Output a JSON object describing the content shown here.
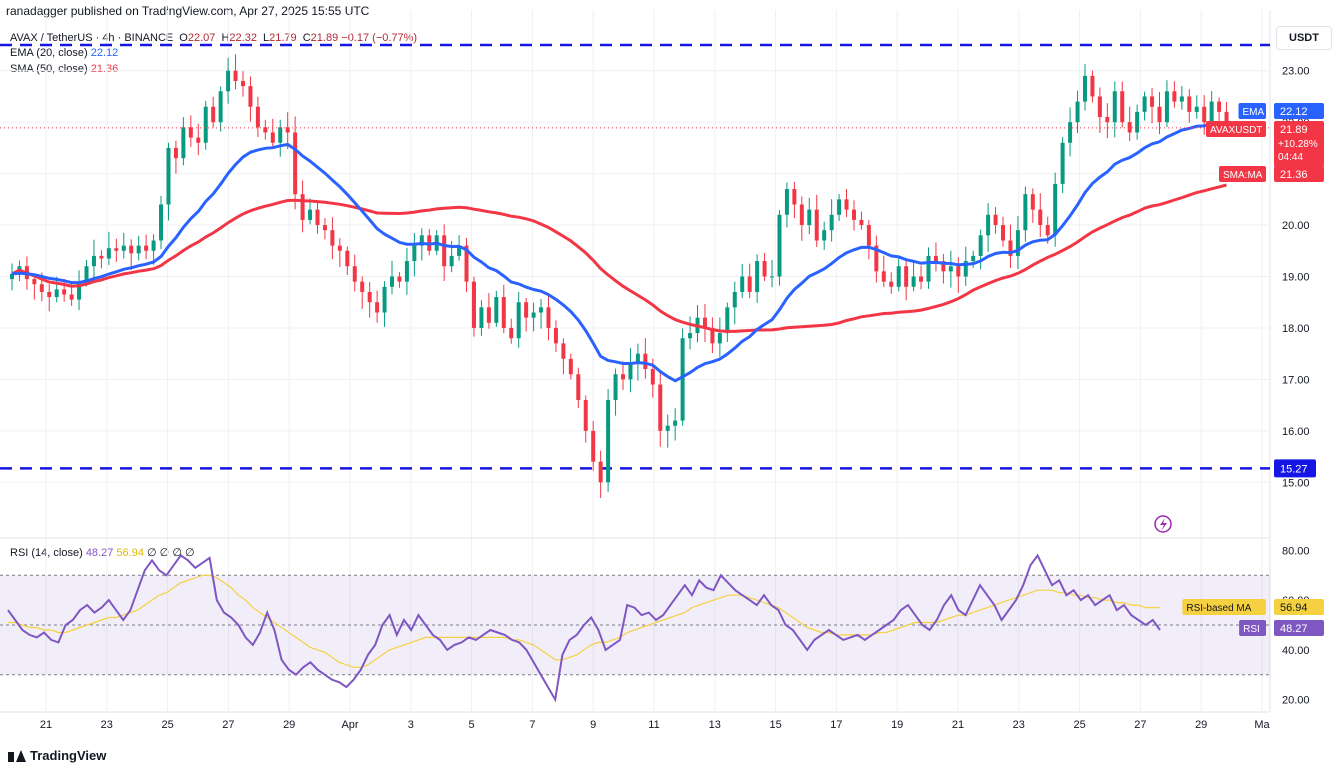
{
  "publisher": "ranadagger published on TradingView.com, Apr 27, 2025 15:55 UTC",
  "brand": "TradingView",
  "currency": "USDT",
  "legend": {
    "symbol": "AVAX / TetherUS · 4h · BINANCE",
    "o_label": "O",
    "o": "22.07",
    "h_label": "H",
    "h": "22.32",
    "l_label": "L",
    "l": "21.79",
    "c_label": "C",
    "c": "21.89",
    "change": "−0.17 (−0.77%)",
    "ema_label": "EMA (20, close)",
    "ema": "22.12",
    "sma_label": "SMA (50, close)",
    "sma": "21.36",
    "rsi_label": "RSI (14, close)",
    "rsi": "48.27",
    "rsi_ma": "56.94",
    "rsi_extra": [
      "∅",
      "∅",
      "∅",
      "∅"
    ]
  },
  "colors": {
    "up": "#089981",
    "down": "#f23645",
    "ema": "#2962ff",
    "sma": "#f23645",
    "rsi": "#7e57c2",
    "rsi_ma": "#f5d142",
    "dash": "#1515e6",
    "grid": "#eef0f3"
  },
  "chart_data": [
    {
      "type": "candlestick",
      "symbol": "AVAXUSDT",
      "ylim": [
        14.5,
        23.5
      ],
      "yticks": [
        "15.00",
        "16.00",
        "17.00",
        "18.00",
        "19.00",
        "20.00",
        "21.00",
        "22.00",
        "23.00"
      ],
      "xticks": [
        "21",
        "23",
        "25",
        "27",
        "29",
        "Apr",
        "3",
        "5",
        "7",
        "9",
        "11",
        "13",
        "15",
        "17",
        "19",
        "21",
        "23",
        "25",
        "27",
        "29",
        "Ma"
      ],
      "horizontal_levels": [
        {
          "value": 23.5,
          "label": ""
        },
        {
          "value": 15.27,
          "label": "15.27"
        }
      ],
      "price_tags": [
        {
          "name": "EMA",
          "value": "22.12",
          "color": "#2962ff"
        },
        {
          "name": "AVAXUSDT",
          "value": "21.89",
          "extra": [
            "+10.28%",
            "04:44"
          ],
          "color": "#f23645"
        },
        {
          "name": "SMA:MA",
          "value": "21.36",
          "color": "#f23645"
        }
      ],
      "close_series": [
        19.05,
        19.2,
        18.95,
        18.85,
        18.7,
        18.6,
        18.75,
        18.65,
        18.55,
        18.9,
        19.2,
        19.4,
        19.35,
        19.55,
        19.5,
        19.6,
        19.45,
        19.6,
        19.5,
        19.7,
        20.4,
        21.5,
        21.3,
        21.9,
        21.7,
        21.6,
        22.3,
        22.0,
        22.6,
        23.0,
        22.8,
        22.7,
        22.3,
        21.9,
        21.8,
        21.6,
        21.9,
        21.8,
        20.6,
        20.1,
        20.3,
        20.0,
        19.9,
        19.6,
        19.5,
        19.2,
        18.9,
        18.7,
        18.5,
        18.3,
        18.8,
        19.0,
        18.9,
        19.3,
        19.6,
        19.8,
        19.5,
        19.8,
        19.2,
        19.4,
        19.6,
        18.9,
        18.0,
        18.4,
        18.1,
        18.6,
        18.0,
        17.8,
        18.5,
        18.2,
        18.3,
        18.4,
        18.0,
        17.7,
        17.4,
        17.1,
        16.6,
        16.0,
        15.4,
        15.0,
        16.6,
        17.1,
        17.0,
        17.3,
        17.5,
        17.2,
        16.9,
        16.0,
        16.1,
        16.2,
        17.8,
        17.9,
        18.2,
        18.0,
        17.7,
        17.9,
        18.4,
        18.7,
        19.0,
        18.7,
        19.3,
        19.0,
        19.0,
        20.2,
        20.7,
        20.4,
        20.0,
        20.3,
        19.7,
        19.9,
        20.2,
        20.5,
        20.3,
        20.1,
        20.0,
        19.6,
        19.1,
        18.9,
        18.8,
        19.2,
        18.8,
        19.0,
        18.9,
        19.4,
        19.3,
        19.1,
        19.2,
        19.0,
        19.3,
        19.4,
        19.8,
        20.2,
        20.0,
        19.7,
        19.4,
        19.9,
        20.6,
        20.3,
        20.0,
        19.8,
        20.8,
        21.6,
        22.0,
        22.4,
        22.9,
        22.5,
        22.1,
        22.0,
        22.6,
        22.0,
        21.8,
        22.2,
        22.5,
        22.3,
        22.0,
        22.6,
        22.4,
        22.5,
        22.2,
        22.3,
        22.0,
        22.4,
        22.2,
        21.89
      ],
      "ema_20": 22.12,
      "sma_50": 21.36
    },
    {
      "type": "line",
      "name": "RSI (14, close)",
      "ylim": [
        15,
        85
      ],
      "yticks": [
        "20.00",
        "40.00",
        "60.00",
        "80.00"
      ],
      "bands": [
        30,
        50,
        70
      ],
      "price_tags": [
        {
          "name": "RSI-based MA",
          "value": "56.94",
          "color": "#f5d142"
        },
        {
          "name": "RSI",
          "value": "48.27",
          "color": "#7e57c2"
        }
      ],
      "rsi": [
        56,
        52,
        48,
        46,
        45,
        47,
        44,
        43,
        50,
        52,
        56,
        58,
        55,
        57,
        60,
        56,
        52,
        56,
        64,
        72,
        76,
        72,
        70,
        74,
        78,
        76,
        73,
        75,
        77,
        60,
        55,
        53,
        50,
        45,
        42,
        47,
        55,
        48,
        36,
        32,
        30,
        33,
        35,
        32,
        30,
        28,
        27,
        25,
        28,
        32,
        38,
        42,
        50,
        54,
        46,
        52,
        48,
        54,
        50,
        46,
        44,
        40,
        42,
        43,
        45,
        44,
        46,
        48,
        47,
        46,
        44,
        43,
        40,
        35,
        30,
        25,
        20,
        38,
        44,
        46,
        50,
        53,
        48,
        40,
        42,
        44,
        58,
        57,
        54,
        55,
        52,
        54,
        58,
        62,
        66,
        62,
        68,
        65,
        64,
        70,
        67,
        64,
        62,
        60,
        58,
        62,
        58,
        56,
        50,
        48,
        44,
        40,
        44,
        46,
        48,
        46,
        44,
        45,
        46,
        44,
        46,
        48,
        50,
        52,
        56,
        58,
        54,
        50,
        48,
        52,
        58,
        62,
        56,
        54,
        60,
        66,
        62,
        58,
        52,
        56,
        60,
        66,
        74,
        78,
        72,
        66,
        68,
        62,
        64,
        60,
        62,
        58,
        60,
        62,
        56,
        58,
        54,
        52,
        50,
        52,
        48
      ],
      "rsi_ma": [
        51,
        51,
        50,
        49,
        49,
        48,
        48,
        47,
        47,
        48,
        49,
        50,
        51,
        52,
        53,
        53,
        54,
        55,
        56,
        58,
        60,
        62,
        63,
        65,
        67,
        68,
        69,
        70,
        70,
        69,
        67,
        65,
        62,
        60,
        57,
        55,
        53,
        51,
        49,
        47,
        45,
        43,
        41,
        40,
        39,
        37,
        35,
        34,
        33,
        33,
        34,
        36,
        38,
        40,
        41,
        42,
        43,
        44,
        45,
        45,
        45,
        45,
        45,
        45,
        45,
        45,
        45,
        45,
        45,
        45,
        44,
        44,
        43,
        42,
        40,
        38,
        36,
        36,
        37,
        38,
        40,
        42,
        43,
        43,
        44,
        45,
        47,
        48,
        49,
        50,
        51,
        52,
        53,
        54,
        55,
        57,
        58,
        59,
        60,
        61,
        62,
        62,
        62,
        61,
        60,
        59,
        58,
        57,
        55,
        53,
        51,
        49,
        48,
        47,
        47,
        46,
        46,
        46,
        46,
        46,
        46,
        47,
        47,
        48,
        49,
        50,
        51,
        51,
        51,
        51,
        52,
        53,
        54,
        54,
        55,
        56,
        57,
        58,
        59,
        60,
        61,
        62,
        63,
        64,
        64,
        64,
        63,
        63,
        62,
        62,
        61,
        61,
        60,
        60,
        59,
        59,
        58,
        58,
        57,
        57,
        56.94
      ]
    }
  ]
}
